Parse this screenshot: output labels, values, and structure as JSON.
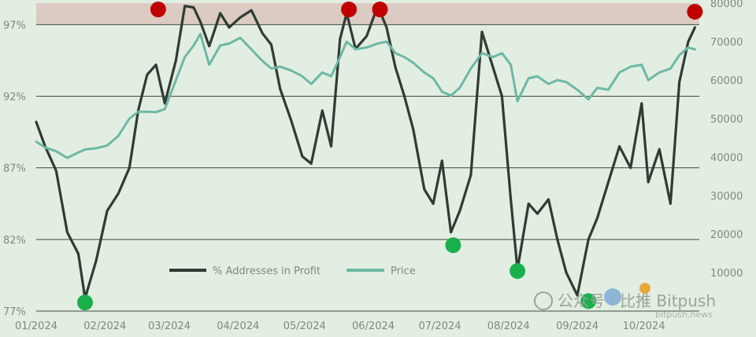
{
  "chart_data": {
    "type": "line",
    "x_ticks": [
      "01/2024",
      "02/2024",
      "03/2024",
      "04/2024",
      "05/2024",
      "06/2024",
      "07/2024",
      "08/2024",
      "09/2024",
      "10/2024"
    ],
    "y_left_ticks": [
      "77%",
      "82%",
      "87%",
      "92%",
      "97%"
    ],
    "y_right_ticks": [
      "10000",
      "20000",
      "30000",
      "40000",
      "50000",
      "60000",
      "70000",
      "80000"
    ],
    "y_left_range": [
      77,
      98.5
    ],
    "y_right_range": [
      0,
      80000
    ],
    "grid": "horizontal",
    "highlight_band": {
      "from_percent": 97,
      "to_percent": 98.5,
      "color": "#dccbc2"
    },
    "legend_position": "bottom-center",
    "x": [
      "2024-01-01",
      "2024-01-05",
      "2024-01-10",
      "2024-01-15",
      "2024-01-20",
      "2024-01-23",
      "2024-01-28",
      "2024-02-02",
      "2024-02-07",
      "2024-02-12",
      "2024-02-16",
      "2024-02-20",
      "2024-02-24",
      "2024-02-28",
      "2024-03-04",
      "2024-03-08",
      "2024-03-12",
      "2024-03-15",
      "2024-03-19",
      "2024-03-24",
      "2024-03-28",
      "2024-04-02",
      "2024-04-07",
      "2024-04-12",
      "2024-04-16",
      "2024-04-20",
      "2024-04-25",
      "2024-04-30",
      "2024-05-04",
      "2024-05-09",
      "2024-05-13",
      "2024-05-17",
      "2024-05-20",
      "2024-05-24",
      "2024-05-29",
      "2024-06-03",
      "2024-06-07",
      "2024-06-11",
      "2024-06-15",
      "2024-06-19",
      "2024-06-24",
      "2024-06-28",
      "2024-07-02",
      "2024-07-06",
      "2024-07-10",
      "2024-07-15",
      "2024-07-20",
      "2024-07-25",
      "2024-07-29",
      "2024-08-02",
      "2024-08-05",
      "2024-08-10",
      "2024-08-14",
      "2024-08-19",
      "2024-08-23",
      "2024-08-27",
      "2024-09-01",
      "2024-09-06",
      "2024-09-10",
      "2024-09-15",
      "2024-09-20",
      "2024-09-25",
      "2024-09-30",
      "2024-10-03",
      "2024-10-08",
      "2024-10-13",
      "2024-10-17",
      "2024-10-21",
      "2024-10-24"
    ],
    "series": [
      {
        "name": "% Addresses in Profit",
        "color": "#2f3b33",
        "axis": "left",
        "values": [
          90.2,
          88.5,
          86.8,
          82.5,
          81,
          77.9,
          80.5,
          84,
          85.2,
          87,
          91,
          93.5,
          94.2,
          91.5,
          94.5,
          98.3,
          98.2,
          97.2,
          95.5,
          97.8,
          96.8,
          97.5,
          98,
          96.4,
          95.6,
          92.5,
          90.3,
          87.8,
          87.3,
          91,
          88.5,
          96,
          97.8,
          95.3,
          96.2,
          98.3,
          96.8,
          94,
          92,
          89.7,
          85.5,
          84.5,
          87.5,
          82.5,
          84,
          86.5,
          96.5,
          94,
          92,
          84.8,
          79.9,
          84.5,
          83.8,
          84.8,
          82,
          79.7,
          78.1,
          82,
          83.5,
          86,
          88.5,
          87,
          91.5,
          86,
          88.3,
          84.5,
          93,
          95.8,
          96.8
        ]
      },
      {
        "name": "Price",
        "color": "#6db8a6",
        "axis": "right",
        "values": [
          44000,
          42500,
          41500,
          39800,
          41200,
          42000,
          42300,
          43000,
          45500,
          50000,
          51800,
          51800,
          51700,
          52500,
          60000,
          66000,
          69000,
          72000,
          64000,
          69000,
          69500,
          71000,
          68000,
          65000,
          63000,
          63500,
          62500,
          61000,
          59000,
          62000,
          61000,
          66000,
          70000,
          68000,
          68500,
          69500,
          70000,
          67000,
          66000,
          64500,
          62000,
          60500,
          57000,
          56000,
          58000,
          63000,
          67000,
          66000,
          67000,
          64000,
          54500,
          60500,
          61000,
          59000,
          60000,
          59500,
          57500,
          55000,
          58000,
          57500,
          62000,
          63500,
          64000,
          60000,
          62000,
          63000,
          66500,
          68500,
          68000
        ]
      }
    ],
    "markers": [
      {
        "label": "peak",
        "color": "#c00000",
        "x": "2024-02-25",
        "series": "% Addresses in Profit",
        "y": 98.5
      },
      {
        "label": "peak",
        "color": "#c00000",
        "x": "2024-05-21",
        "series": "% Addresses in Profit",
        "y": 98.5
      },
      {
        "label": "peak",
        "color": "#c00000",
        "x": "2024-06-04",
        "series": "% Addresses in Profit",
        "y": 98.5
      },
      {
        "label": "peak",
        "color": "#c00000",
        "x": "2024-10-24",
        "series": "% Addresses in Profit",
        "y": 97.9
      },
      {
        "label": "trough",
        "color": "#19b04c",
        "x": "2024-01-23",
        "series": "% Addresses in Profit",
        "y": 77.6
      },
      {
        "label": "trough",
        "color": "#19b04c",
        "x": "2024-07-07",
        "series": "% Addresses in Profit",
        "y": 81.6
      },
      {
        "label": "trough",
        "color": "#19b04c",
        "x": "2024-08-05",
        "series": "% Addresses in Profit",
        "y": 79.8
      },
      {
        "label": "trough",
        "color": "#19b04c",
        "x": "2024-09-06",
        "series": "% Addresses in Profit",
        "y": 77.7
      }
    ]
  },
  "watermark": {
    "text": "公众号 · 比推 Bitpush",
    "sub": "bitpush.news"
  }
}
